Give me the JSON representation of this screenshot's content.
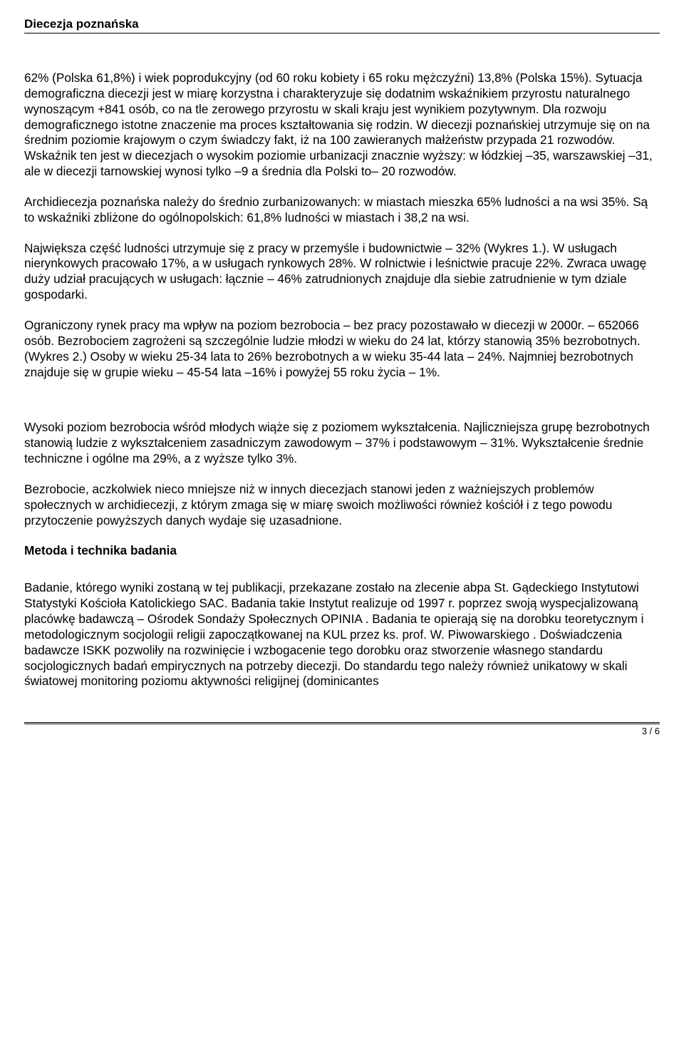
{
  "header": {
    "title": "Diecezja poznańska"
  },
  "body": {
    "p1": "62% (Polska 61,8%) i wiek poprodukcyjny (od 60 roku kobiety i 65 roku mężczyźni) 13,8% (Polska 15%). Sytuacja demograficzna diecezji jest w miarę korzystna i charakteryzuje się dodatnim wskaźnikiem przyrostu naturalnego wynoszącym +841 osób, co na tle zerowego przyrostu w skali kraju jest wynikiem pozytywnym. Dla rozwoju demograficznego istotne znaczenie ma proces kształtowania się rodzin. W diecezji poznańskiej utrzymuje się on na średnim poziomie krajowym o czym świadczy fakt, iż na 100 zawieranych małżeństw przypada 21 rozwodów. Wskaźnik ten jest w diecezjach o wysokim poziomie urbanizacji znacznie wyższy: w łódzkiej –35, warszawskiej –31, ale w diecezji tarnowskiej wynosi tylko –9 a średnia dla Polski to– 20 rozwodów.",
    "p2": "Archidiecezja poznańska należy do średnio zurbanizowanych: w miastach mieszka 65% ludności a na wsi 35%. Są to wskaźniki zbliżone do ogólnopolskich: 61,8% ludności w miastach i 38,2 na wsi.",
    "p3": "Największa część ludności utrzymuje się z pracy w przemyśle i budownictwie – 32% (Wykres 1.). W usługach nierynkowych pracowało 17%, a w usługach rynkowych 28%. W rolnictwie i leśnictwie pracuje 22%. Zwraca uwagę duży udział pracujących w usługach: łącznie – 46% zatrudnionych znajduje dla siebie zatrudnienie w tym dziale gospodarki.",
    "p4": "Ograniczony rynek pracy ma wpływ na poziom bezrobocia – bez pracy pozostawało w diecezji w 2000r. – 652066 osób. Bezrobociem zagrożeni są szczególnie ludzie młodzi w wieku do 24 lat, którzy stanowią 35% bezrobotnych. (Wykres 2.) Osoby w wieku 25-34 lata to 26% bezrobotnych a w wieku 35-44 lata – 24%. Najmniej bezrobotnych znajduje się w grupie wieku – 45-54 lata –16% i powyżej 55 roku życia – 1%.",
    "p5": "Wysoki poziom bezrobocia wśród młodych wiąże się z poziomem wykształcenia. Najliczniejsza grupę bezrobotnych stanowią ludzie z wykształceniem zasadniczym zawodowym – 37% i podstawowym – 31%. Wykształcenie średnie techniczne i ogólne ma 29%, a z wyższe tylko 3%.",
    "p6": "Bezrobocie, aczkolwiek nieco mniejsze niż w innych diecezjach stanowi jeden z ważniejszych problemów społecznych w archidiecezji, z którym zmaga się w miarę swoich możliwości również kościół i z tego powodu przytoczenie powyższych danych wydaje się uzasadnione.",
    "section_head": "Metoda i technika badania",
    "p7": "Badanie, którego wyniki zostaną w tej publikacji, przekazane zostało na zlecenie abpa St. Gądeckiego Instytutowi Statystyki Kościoła Katolickiego SAC. Badania takie Instytut realizuje od 1997 r. poprzez swoją wyspecjalizowaną placówkę badawczą – Ośrodek Sondaży Społecznych OPINIA . Badania te opierają się na dorobku teoretycznym i metodologicznym socjologii religii zapoczątkowanej na KUL przez ks. prof. W. Piwowarskiego . Doświadczenia badawcze ISKK pozwoliły na rozwinięcie i wzbogacenie tego dorobku oraz stworzenie własnego standardu socjologicznych badań empirycznych na potrzeby diecezji. Do standardu tego należy również unikatowy w skali światowej monitoring poziomu aktywności religijnej (dominicantes"
  },
  "footer": {
    "page_num": "3 / 6"
  }
}
